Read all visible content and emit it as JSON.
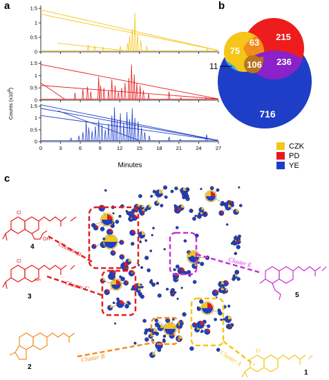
{
  "panels": {
    "a": "a",
    "b": "b",
    "c": "c"
  },
  "chart_data": [
    {
      "type": "line",
      "panel": "a",
      "xlabel": "Minutes",
      "ylabel": "Counts (x10^6)",
      "ylabel_text": "Counts (x10",
      "ylabel_exp": "6",
      "ylabel_close": ")",
      "xlim": [
        0,
        27
      ],
      "x_ticks": [
        "0",
        "3",
        "6",
        "9",
        "12",
        "15",
        "18",
        "21",
        "24",
        "27"
      ],
      "y_ticks": [
        "0",
        "0.5",
        "1",
        "1.5"
      ],
      "series": [
        {
          "color": "#f5c518",
          "peaks": [
            [
              7.2,
              0.25
            ],
            [
              8.2,
              0.2
            ],
            [
              9.5,
              0.15
            ],
            [
              12.1,
              0.2
            ],
            [
              13.2,
              0.3
            ],
            [
              13.5,
              0.55
            ],
            [
              13.9,
              0.8
            ],
            [
              14.3,
              1.35
            ],
            [
              14.7,
              0.6
            ],
            [
              15.2,
              0.4
            ],
            [
              16.1,
              0.2
            ],
            [
              25.3,
              0.12
            ]
          ],
          "diag": [
            [
              0,
              1.45,
              27,
              0.05
            ],
            [
              0,
              1.3,
              27,
              0.05
            ],
            [
              2.5,
              0.3,
              12.5,
              0.05
            ]
          ]
        },
        {
          "color": "#e41a1c",
          "peaks": [
            [
              5.2,
              0.3
            ],
            [
              6.4,
              0.45
            ],
            [
              7.1,
              0.55
            ],
            [
              7.6,
              0.35
            ],
            [
              8.8,
              0.95
            ],
            [
              9.1,
              0.6
            ],
            [
              9.6,
              0.5
            ],
            [
              10.3,
              0.4
            ],
            [
              10.8,
              0.85
            ],
            [
              11.3,
              0.6
            ],
            [
              11.8,
              0.35
            ],
            [
              12.3,
              0.5
            ],
            [
              12.8,
              0.7
            ],
            [
              13.4,
              0.9
            ],
            [
              13.8,
              1.45
            ],
            [
              14.2,
              1.05
            ],
            [
              14.6,
              0.7
            ],
            [
              15.1,
              0.6
            ],
            [
              15.6,
              0.4
            ],
            [
              16.4,
              0.25
            ],
            [
              19.5,
              0.35
            ],
            [
              21.3,
              0.1
            ],
            [
              25.1,
              0.1
            ]
          ],
          "diag": [
            [
              0,
              1.45,
              27,
              0.05
            ],
            [
              0,
              0.6,
              27,
              0.05
            ],
            [
              0,
              0.7,
              3.6,
              0.05
            ]
          ]
        },
        {
          "color": "#1f3ec7",
          "peaks": [
            [
              4.6,
              0.15
            ],
            [
              5.8,
              0.25
            ],
            [
              6.4,
              0.4
            ],
            [
              6.9,
              0.85
            ],
            [
              7.3,
              0.6
            ],
            [
              7.8,
              0.45
            ],
            [
              8.3,
              0.65
            ],
            [
              8.8,
              0.9
            ],
            [
              9.3,
              0.7
            ],
            [
              9.8,
              0.5
            ],
            [
              10.3,
              0.75
            ],
            [
              10.8,
              1.1
            ],
            [
              11.2,
              1.45
            ],
            [
              11.6,
              0.9
            ],
            [
              12.1,
              1.2
            ],
            [
              12.6,
              0.8
            ],
            [
              13.1,
              1.25
            ],
            [
              13.5,
              0.95
            ],
            [
              13.9,
              1.4
            ],
            [
              14.3,
              1.0
            ],
            [
              14.8,
              0.85
            ],
            [
              15.3,
              0.6
            ],
            [
              15.8,
              0.4
            ],
            [
              16.5,
              0.25
            ],
            [
              19.5,
              0.2
            ],
            [
              21.2,
              0.1
            ],
            [
              25.2,
              0.3
            ]
          ],
          "diag": [
            [
              0,
              1.55,
              27,
              0.05
            ],
            [
              0,
              1.4,
              27,
              0.05
            ],
            [
              0,
              1.1,
              27,
              0.05
            ],
            [
              2.6,
              1.3,
              15,
              0.05
            ]
          ]
        }
      ]
    },
    {
      "type": "venn",
      "panel": "b",
      "sets": [
        "CZK",
        "PD",
        "YE"
      ],
      "colors": {
        "CZK": "#f5c518",
        "PD": "#e41a1c",
        "YE": "#1f3ec7"
      },
      "regions": {
        "CZK_only": "75",
        "PD_only": "215",
        "YE_only": "716",
        "CZK_PD": "63",
        "PD_YE": "236",
        "CZK_PD_YE": "106",
        "CZK_YE": "11"
      }
    }
  ],
  "network": {
    "clusters": [
      {
        "name": "Cluster A",
        "color": "#f5c518"
      },
      {
        "name": "Cluster B",
        "color": "#f28c1b"
      },
      {
        "name": "Cluster C",
        "color": "#e41a1c"
      },
      {
        "name": "Cluster D",
        "color": "#e41a1c"
      },
      {
        "name": "Cluster E",
        "color": "#c72fd4"
      }
    ],
    "compounds": [
      {
        "number": "1",
        "color": "#f5c518",
        "label": "Cl"
      },
      {
        "number": "2",
        "color": "#f28c1b",
        "label": ""
      },
      {
        "number": "3",
        "color": "#e41a1c",
        "label": "Cl"
      },
      {
        "number": "4",
        "color": "#e41a1c",
        "label": "Cl"
      },
      {
        "number": "5",
        "color": "#c72fd4",
        "label": ""
      }
    ],
    "atom_labels": {
      "nh": "NH",
      "oh": "OH",
      "n": "N",
      "o": "O"
    }
  }
}
